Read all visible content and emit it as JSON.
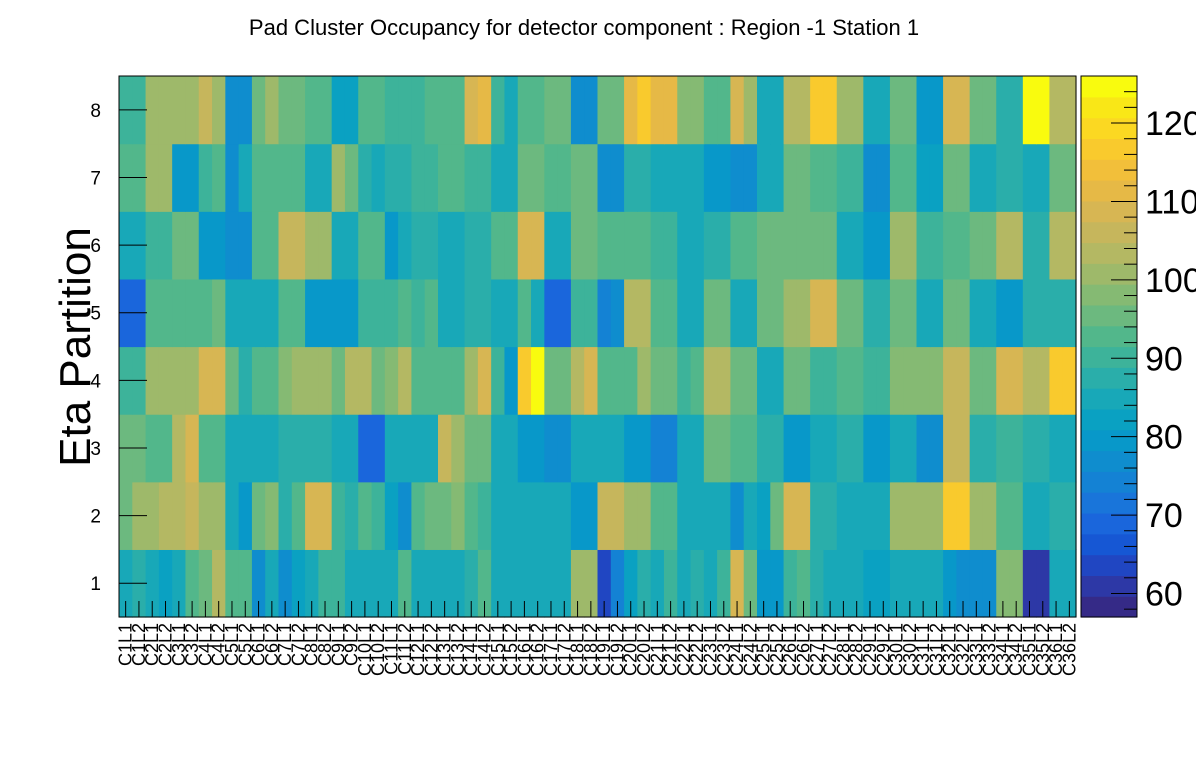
{
  "chart_data": {
    "type": "heatmap",
    "title": "Pad Cluster Occupancy for detector component : Region -1 Station 1",
    "xlabel": "",
    "ylabel": "Eta Partition",
    "x_categories": [
      "C1L1",
      "C1L2",
      "C2L1",
      "C2L2",
      "C3L1",
      "C3L2",
      "C4L1",
      "C4L2",
      "C5L1",
      "C5L2",
      "C6L1",
      "C6L2",
      "C7L1",
      "C7L2",
      "C8L1",
      "C8L2",
      "C9L1",
      "C9L2",
      "C10L1",
      "C10L2",
      "C11L1",
      "C11L2",
      "C12L1",
      "C12L2",
      "C13L1",
      "C13L2",
      "C14L1",
      "C14L2",
      "C15L1",
      "C15L2",
      "C16L1",
      "C16L2",
      "C17L1",
      "C17L2",
      "C18L1",
      "C18L2",
      "C19L1",
      "C19L2",
      "C20L1",
      "C20L2",
      "C21L1",
      "C21L2",
      "C22L1",
      "C22L2",
      "C23L1",
      "C23L2",
      "C24L1",
      "C24L2",
      "C25L1",
      "C25L2",
      "C26L1",
      "C26L2",
      "C27L1",
      "C27L2",
      "C28L1",
      "C28L2",
      "C29L1",
      "C29L2",
      "C30L1",
      "C30L2",
      "C31L1",
      "C31L2",
      "C32L1",
      "C32L2",
      "C33L1",
      "C33L2",
      "C34L1",
      "C34L2",
      "C35L1",
      "C35L2",
      "C36L1",
      "C36L2"
    ],
    "y_categories": [
      "1",
      "2",
      "3",
      "4",
      "5",
      "6",
      "7",
      "8"
    ],
    "z_range": [
      57,
      126
    ],
    "z_ticks": [
      60,
      70,
      80,
      90,
      100,
      110,
      120
    ],
    "colormap": [
      "#352a87",
      "#2d38a6",
      "#2046c2",
      "#1657d4",
      "#1a66dc",
      "#1975da",
      "#1482d4",
      "#0f8dce",
      "#0898c9",
      "#0aa1c2",
      "#18a8b8",
      "#2aaeaa",
      "#3db39a",
      "#52b78b",
      "#6cb97f",
      "#85ba73",
      "#9eb96a",
      "#b4b863",
      "#c6b65c",
      "#d7b653",
      "#e6b946",
      "#f2bf3a",
      "#f9ca2d",
      "#fbd822",
      "#f9e717",
      "#f9fb0e"
    ],
    "grid": false,
    "values": [
      [
        85,
        88,
        84,
        82,
        86,
        92,
        96,
        104,
        94,
        92,
        77,
        86,
        78,
        81,
        84,
        90,
        90,
        86,
        84,
        86,
        86,
        92,
        86,
        84,
        86,
        86,
        88,
        92,
        86,
        86,
        84,
        84,
        85,
        86,
        102,
        102,
        63,
        74,
        81,
        88,
        86,
        90,
        84,
        88,
        86,
        90,
        108,
        96,
        80,
        80,
        90,
        92,
        88,
        84,
        86,
        86,
        82,
        82,
        84,
        84,
        86,
        86,
        80,
        76,
        76,
        78,
        98,
        98,
        62,
        62,
        86,
        86
      ],
      [
        96,
        100,
        100,
        104,
        104,
        106,
        102,
        102,
        86,
        80,
        96,
        98,
        88,
        92,
        108,
        108,
        90,
        88,
        92,
        90,
        82,
        78,
        94,
        96,
        96,
        98,
        92,
        90,
        84,
        84,
        84,
        84,
        84,
        84,
        80,
        80,
        106,
        106,
        100,
        100,
        92,
        92,
        86,
        86,
        86,
        86,
        78,
        84,
        82,
        96,
        108,
        108,
        88,
        88,
        84,
        84,
        84,
        84,
        100,
        100,
        100,
        100,
        116,
        116,
        102,
        102,
        92,
        92,
        86,
        86,
        88,
        88
      ],
      [
        96,
        96,
        92,
        92,
        104,
        108,
        92,
        94,
        84,
        84,
        84,
        84,
        88,
        88,
        88,
        88,
        84,
        84,
        70,
        70,
        86,
        86,
        86,
        86,
        106,
        100,
        96,
        96,
        84,
        84,
        80,
        80,
        78,
        78,
        84,
        84,
        84,
        84,
        80,
        80,
        74,
        74,
        84,
        84,
        96,
        96,
        92,
        92,
        88,
        88,
        80,
        80,
        84,
        84,
        88,
        88,
        80,
        80,
        84,
        84,
        76,
        76,
        106,
        106,
        88,
        88,
        90,
        90,
        88,
        88,
        84,
        84
      ],
      [
        90,
        90,
        100,
        100,
        100,
        100,
        110,
        110,
        96,
        88,
        94,
        92,
        98,
        100,
        100,
        100,
        96,
        104,
        104,
        96,
        98,
        104,
        92,
        92,
        94,
        94,
        102,
        108,
        90,
        80,
        116,
        124,
        96,
        96,
        104,
        110,
        92,
        92,
        92,
        100,
        96,
        96,
        90,
        92,
        104,
        104,
        96,
        96,
        84,
        84,
        96,
        96,
        90,
        90,
        92,
        92,
        90,
        90,
        98,
        98,
        98,
        98,
        106,
        106,
        96,
        96,
        108,
        108,
        104,
        104,
        118,
        118
      ],
      [
        70,
        70,
        92,
        92,
        92,
        92,
        94,
        96,
        84,
        84,
        84,
        84,
        94,
        94,
        80,
        80,
        80,
        80,
        90,
        90,
        90,
        92,
        90,
        92,
        86,
        86,
        88,
        88,
        86,
        86,
        94,
        84,
        70,
        70,
        90,
        90,
        74,
        76,
        104,
        104,
        92,
        92,
        86,
        86,
        96,
        96,
        86,
        86,
        96,
        96,
        100,
        100,
        110,
        110,
        96,
        96,
        88,
        88,
        96,
        96,
        84,
        84,
        96,
        96,
        86,
        86,
        80,
        80,
        88,
        88,
        88,
        88
      ],
      [
        86,
        86,
        90,
        90,
        96,
        96,
        80,
        80,
        78,
        78,
        92,
        92,
        106,
        106,
        100,
        100,
        84,
        84,
        92,
        92,
        80,
        84,
        88,
        88,
        86,
        86,
        88,
        88,
        92,
        92,
        108,
        108,
        84,
        84,
        96,
        96,
        92,
        92,
        94,
        94,
        90,
        90,
        84,
        84,
        88,
        88,
        92,
        92,
        96,
        96,
        96,
        96,
        96,
        96,
        86,
        86,
        80,
        80,
        102,
        102,
        90,
        90,
        92,
        92,
        96,
        96,
        104,
        104,
        88,
        88,
        104,
        104
      ],
      [
        92,
        92,
        100,
        100,
        80,
        80,
        90,
        92,
        78,
        84,
        92,
        92,
        92,
        92,
        86,
        86,
        102,
        96,
        88,
        86,
        88,
        88,
        90,
        90,
        92,
        92,
        90,
        90,
        86,
        86,
        96,
        96,
        92,
        92,
        96,
        96,
        78,
        78,
        88,
        88,
        84,
        84,
        86,
        86,
        80,
        80,
        76,
        76,
        86,
        86,
        96,
        96,
        92,
        92,
        90,
        90,
        76,
        76,
        92,
        92,
        82,
        82,
        96,
        96,
        86,
        86,
        88,
        88,
        84,
        84,
        96,
        96
      ],
      [
        90,
        90,
        100,
        100,
        100,
        100,
        106,
        102,
        78,
        78,
        96,
        100,
        96,
        96,
        92,
        92,
        82,
        82,
        94,
        94,
        90,
        90,
        90,
        92,
        92,
        92,
        108,
        112,
        90,
        86,
        92,
        92,
        96,
        96,
        76,
        76,
        96,
        96,
        112,
        116,
        112,
        112,
        98,
        98,
        92,
        92,
        110,
        100,
        84,
        84,
        104,
        104,
        116,
        116,
        100,
        100,
        84,
        84,
        96,
        96,
        80,
        80,
        110,
        110,
        96,
        96,
        88,
        88,
        125,
        125,
        104,
        104
      ]
    ]
  }
}
